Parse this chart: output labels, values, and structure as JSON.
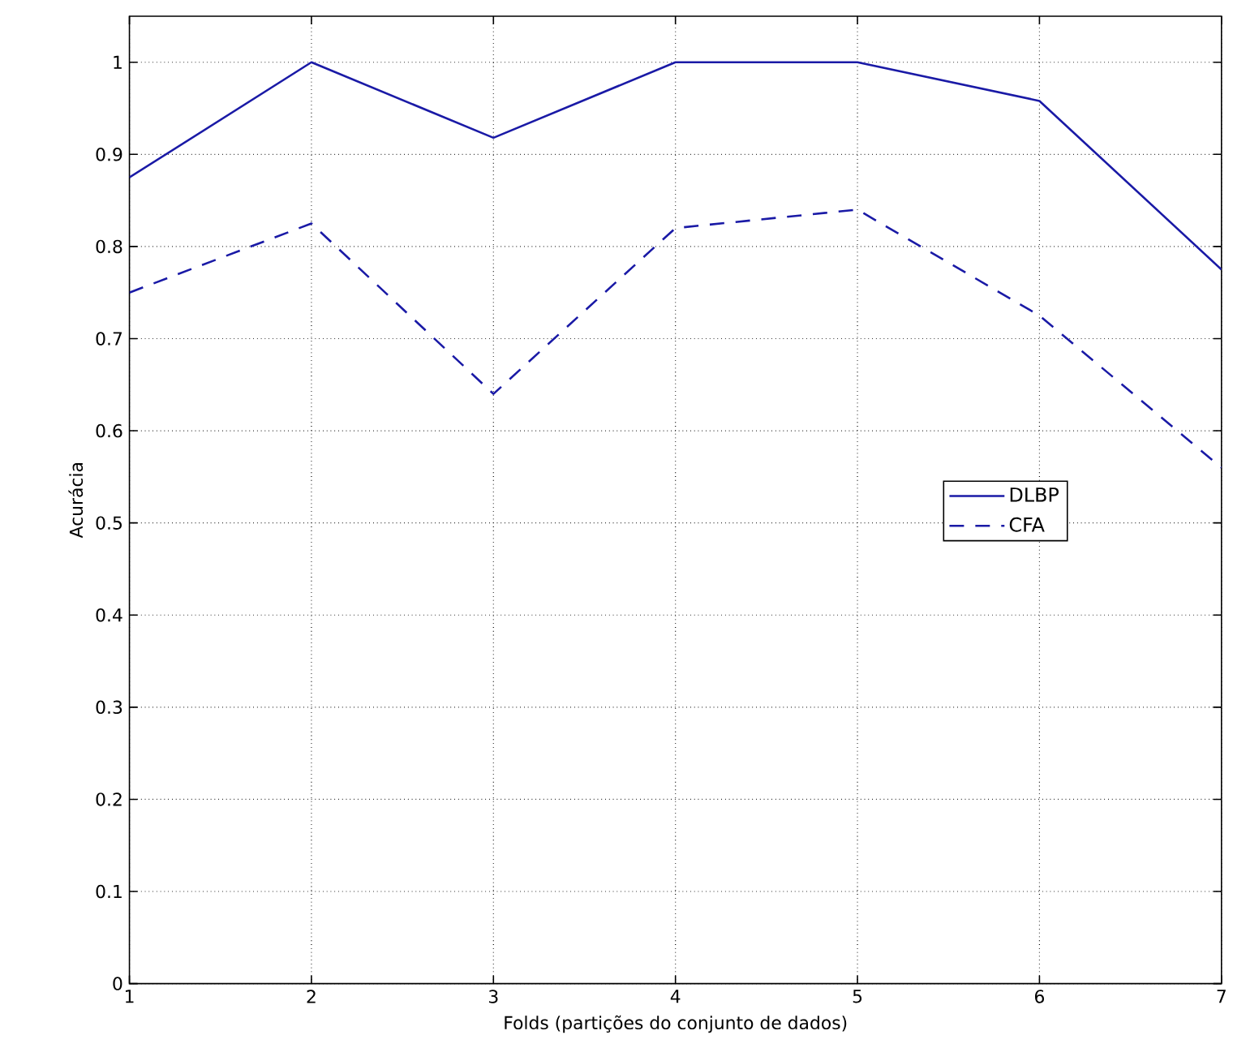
{
  "chart_data": {
    "type": "line",
    "xlabel": "Folds (partições do conjunto de dados)",
    "ylabel": "Acurácia",
    "x": [
      1,
      2,
      3,
      4,
      5,
      6,
      7
    ],
    "series": [
      {
        "name": "DLBP",
        "color": "#1a1aa6",
        "line_style": "solid",
        "values": [
          0.875,
          1.0,
          0.918,
          1.0,
          1.0,
          0.958,
          0.775
        ]
      },
      {
        "name": "CFA",
        "color": "#1a1aa6",
        "line_style": "dashed",
        "values": [
          0.75,
          0.825,
          0.64,
          0.82,
          0.84,
          0.725,
          0.56
        ]
      }
    ],
    "xlim": [
      1,
      7
    ],
    "ylim": [
      0,
      1.05
    ],
    "xticks": [
      1,
      2,
      3,
      4,
      5,
      6,
      7
    ],
    "yticks": [
      0,
      0.1,
      0.2,
      0.3,
      0.4,
      0.5,
      0.6,
      0.7,
      0.8,
      0.9,
      1
    ],
    "grid": true,
    "legend": "right"
  }
}
